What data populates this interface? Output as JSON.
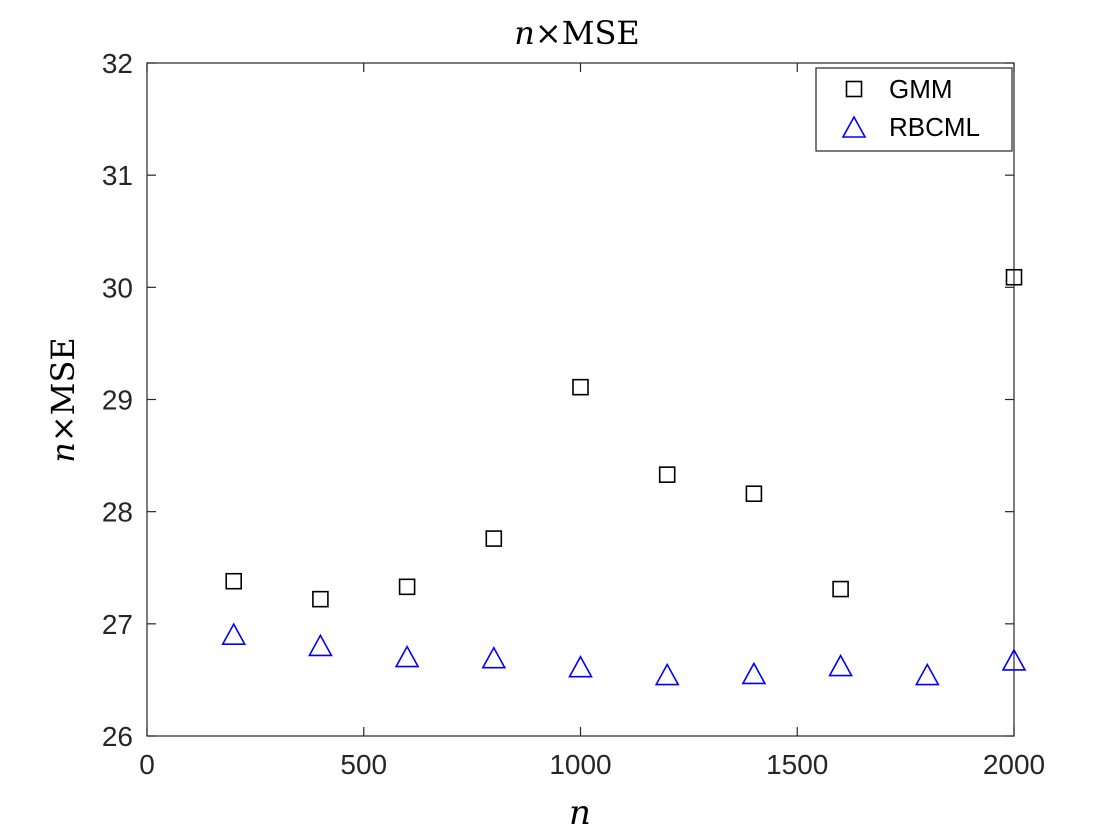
{
  "chart_data": {
    "type": "scatter",
    "title": "n×MSE",
    "title_italic": "n",
    "title_rest": "×MSE",
    "xlabel": "n",
    "ylabel_italic": "n",
    "ylabel_rest": "×MSE",
    "xlim": [
      0,
      2000
    ],
    "ylim": [
      26,
      32
    ],
    "xticks": [
      0,
      500,
      1000,
      1500,
      2000
    ],
    "yticks": [
      26,
      27,
      28,
      29,
      30,
      31,
      32
    ],
    "grid": false,
    "legend_position": "top-right",
    "series": [
      {
        "name": "GMM",
        "marker": "square",
        "color": "#000000",
        "x": [
          200,
          400,
          600,
          800,
          1000,
          1200,
          1400,
          1600,
          2000
        ],
        "y": [
          27.38,
          27.22,
          27.33,
          27.76,
          29.11,
          28.33,
          28.16,
          27.31,
          30.09
        ]
      },
      {
        "name": "RBCML",
        "marker": "triangle",
        "color": "#0000ff",
        "x": [
          200,
          400,
          600,
          800,
          1000,
          1200,
          1400,
          1600,
          1800,
          2000
        ],
        "y": [
          26.89,
          26.79,
          26.69,
          26.68,
          26.6,
          26.53,
          26.54,
          26.61,
          26.53,
          26.66
        ]
      }
    ]
  }
}
